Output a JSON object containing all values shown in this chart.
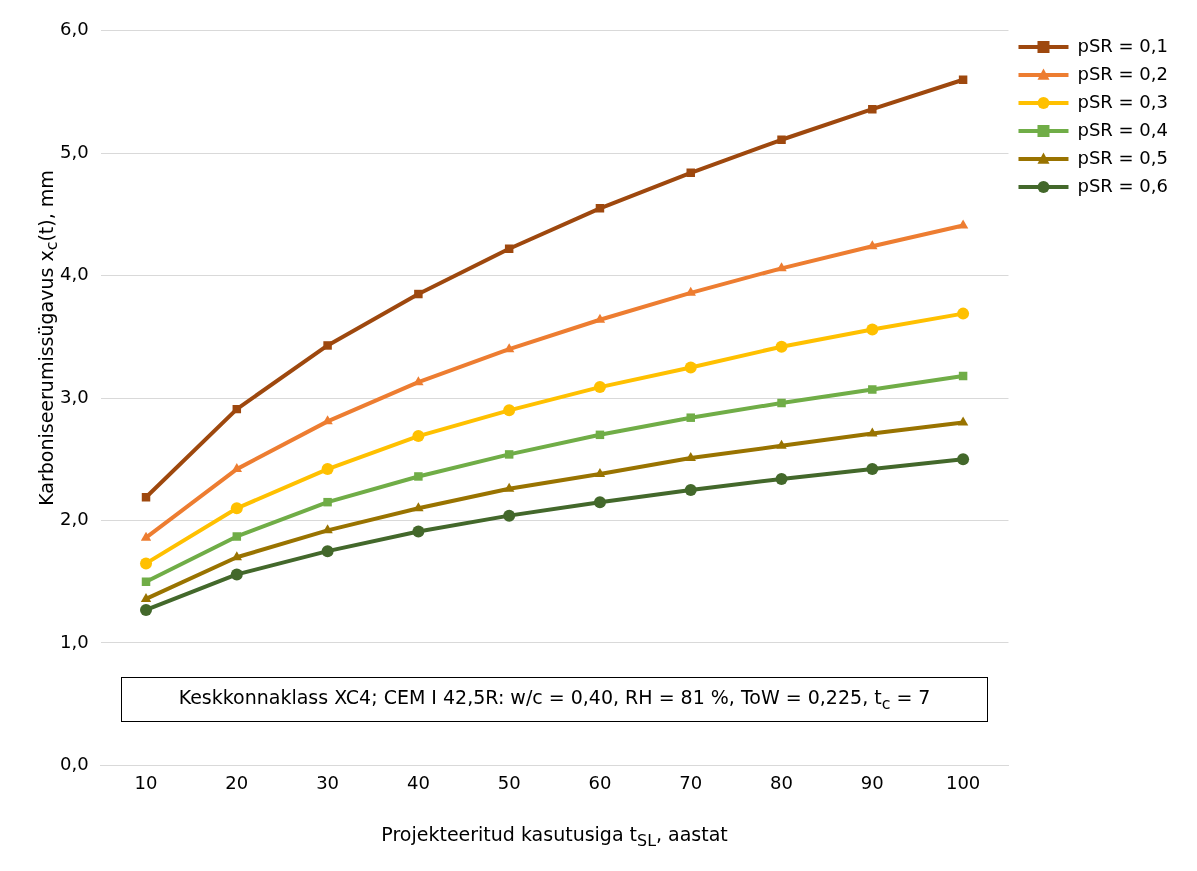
{
  "chart_data": {
    "type": "line",
    "xlabel": "Projekteeritud kasutusiga t$_{SL}$, aastat",
    "ylabel": "Karboniseerumissügavus x$_{c}$(t), mm",
    "annotations": [
      "Keskkonnaklass XC4; CEM I 42,5R: w/c = 0,40, RH = 81 %, ToW = 0,225, t$_{c}$ = 7"
    ],
    "categories": [
      "10",
      "20",
      "30",
      "40",
      "50",
      "60",
      "70",
      "80",
      "90",
      "100"
    ],
    "ylim": [
      0,
      6
    ],
    "yticks": [
      {
        "value": 0,
        "label": "0,0"
      },
      {
        "value": 1,
        "label": "1,0"
      },
      {
        "value": 2,
        "label": "2,0"
      },
      {
        "value": 3,
        "label": "3,0"
      },
      {
        "value": 4,
        "label": "4,0"
      },
      {
        "value": 5,
        "label": "5,0"
      },
      {
        "value": 6,
        "label": "6,0"
      }
    ],
    "grid": "y",
    "legend": "right",
    "line_style": "solid",
    "series": [
      {
        "name": "pSR = 0,1",
        "color": "#9e480e",
        "marker": "square",
        "values": [
          2.19,
          2.91,
          3.43,
          3.85,
          4.22,
          4.55,
          4.84,
          5.11,
          5.36,
          5.6
        ]
      },
      {
        "name": "pSR = 0,2",
        "color": "#ed7d31",
        "marker": "triangle",
        "values": [
          1.86,
          2.42,
          2.81,
          3.13,
          3.4,
          3.64,
          3.86,
          4.06,
          4.24,
          4.41
        ]
      },
      {
        "name": "pSR = 0,3",
        "color": "#ffc000",
        "marker": "circle",
        "values": [
          1.65,
          2.1,
          2.42,
          2.69,
          2.9,
          3.09,
          3.25,
          3.42,
          3.56,
          3.69
        ]
      },
      {
        "name": "pSR = 0,4",
        "color": "#70ad47",
        "marker": "square",
        "values": [
          1.5,
          1.87,
          2.15,
          2.36,
          2.54,
          2.7,
          2.84,
          2.96,
          3.07,
          3.18
        ]
      },
      {
        "name": "pSR = 0,5",
        "color": "#997300",
        "marker": "triangle",
        "values": [
          1.36,
          1.7,
          1.92,
          2.1,
          2.26,
          2.38,
          2.51,
          2.61,
          2.71,
          2.8
        ]
      },
      {
        "name": "pSR = 0,6",
        "color": "#43682b",
        "marker": "circle",
        "values": [
          1.27,
          1.56,
          1.75,
          1.91,
          2.04,
          2.15,
          2.25,
          2.34,
          2.42,
          2.5
        ]
      }
    ]
  }
}
